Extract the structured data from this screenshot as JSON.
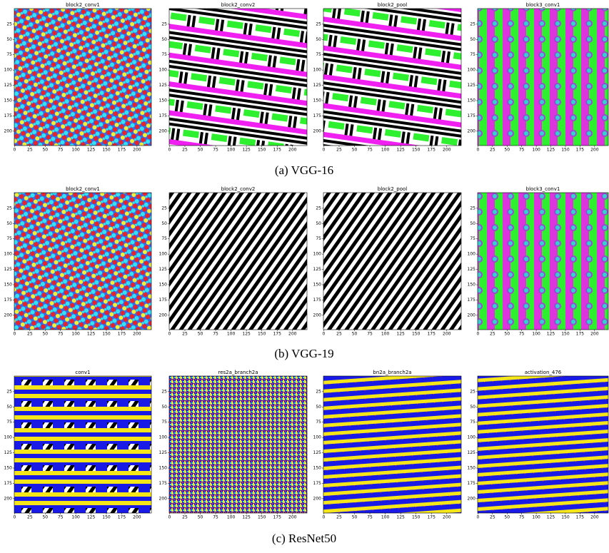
{
  "figure": {
    "xticks": [
      0,
      25,
      50,
      75,
      100,
      125,
      150,
      175,
      200
    ],
    "yticks": [
      25,
      50,
      75,
      100,
      125,
      150,
      175,
      200
    ],
    "rows": [
      {
        "caption": "(a) VGG-16",
        "panels": [
          {
            "title": "block2_conv1"
          },
          {
            "title": "block2_conv2"
          },
          {
            "title": "block2_pool"
          },
          {
            "title": "block3_conv1"
          }
        ]
      },
      {
        "caption": "(b) VGG-19",
        "panels": [
          {
            "title": "block2_conv1"
          },
          {
            "title": "block2_conv2"
          },
          {
            "title": "block2_pool"
          },
          {
            "title": "block3_conv1"
          }
        ]
      },
      {
        "caption": "(c) ResNet50",
        "panels": [
          {
            "title": "conv1"
          },
          {
            "title": "res2a_branch2a"
          },
          {
            "title": "bn2a_branch2a"
          },
          {
            "title": "activation_476"
          }
        ]
      }
    ]
  }
}
